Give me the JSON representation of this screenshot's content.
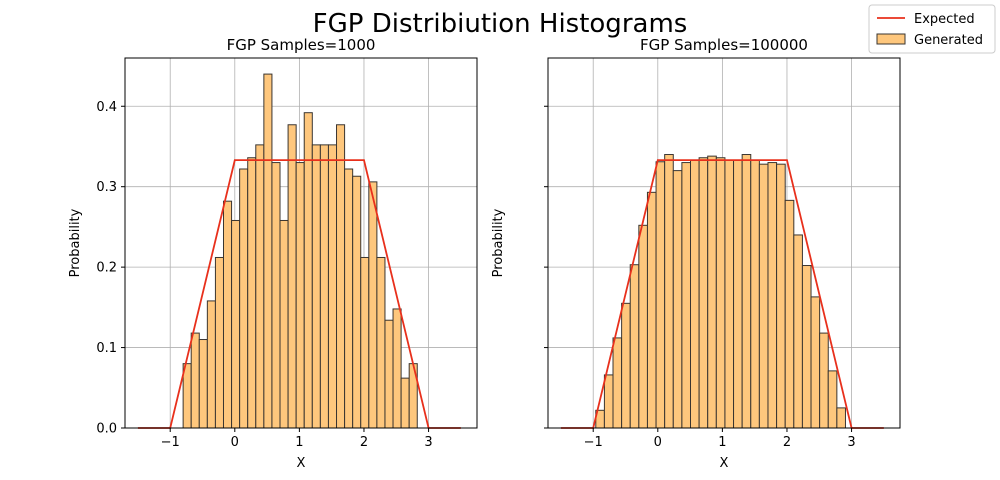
{
  "figure": {
    "title": "FGP Distribiution Histograms"
  },
  "legend": {
    "placement": "top-right",
    "items": [
      {
        "label": "Expected",
        "kind": "line",
        "color": "#e8301c"
      },
      {
        "label": "Generated",
        "kind": "bar",
        "color": "#fec77d"
      }
    ]
  },
  "colors": {
    "bar_fill": "#fec77d",
    "bar_edge": "#3a3530",
    "expected_line": "#e8301c",
    "grid": "#b0b0b0"
  },
  "chart_data": [
    {
      "type": "bar",
      "title": "FGP Samples=1000",
      "xlabel": "X",
      "ylabel": "Probability",
      "xlim": [
        -1.7,
        3.75
      ],
      "ylim": [
        0,
        0.46
      ],
      "xticks": [
        -1,
        0,
        1,
        2,
        3
      ],
      "yticks": [
        0.0,
        0.1,
        0.2,
        0.3,
        0.4
      ],
      "ytick_labels": [
        "0.0",
        "0.1",
        "0.2",
        "0.3",
        "0.4"
      ],
      "show_ytick_labels": true,
      "grid": true,
      "bin_edges_start": -0.8,
      "bin_width": 0.125,
      "values": [
        0.08,
        0.118,
        0.11,
        0.158,
        0.212,
        0.282,
        0.258,
        0.322,
        0.336,
        0.352,
        0.44,
        0.33,
        0.258,
        0.377,
        0.33,
        0.392,
        0.352,
        0.352,
        0.352,
        0.377,
        0.322,
        0.313,
        0.212,
        0.306,
        0.212,
        0.134,
        0.148,
        0.062,
        0.08
      ],
      "expected_series": {
        "name": "Expected",
        "x": [
          -1.5,
          -1.0,
          0.0,
          2.0,
          3.0,
          3.5
        ],
        "y": [
          0,
          0,
          0.333,
          0.333,
          0,
          0
        ]
      }
    },
    {
      "type": "bar",
      "title": "FGP Samples=100000",
      "xlabel": "X",
      "ylabel": "Probability",
      "xlim": [
        -1.7,
        3.75
      ],
      "ylim": [
        0,
        0.46
      ],
      "xticks": [
        -1,
        0,
        1,
        2,
        3
      ],
      "yticks": [
        0.0,
        0.1,
        0.2,
        0.3,
        0.4
      ],
      "ytick_labels": [
        "",
        "",
        "",
        "",
        ""
      ],
      "show_ytick_labels": false,
      "grid": true,
      "bin_edges_start": -0.96,
      "bin_width": 0.1333,
      "values": [
        0.022,
        0.066,
        0.112,
        0.155,
        0.203,
        0.252,
        0.293,
        0.331,
        0.34,
        0.32,
        0.33,
        0.333,
        0.336,
        0.338,
        0.336,
        0.333,
        0.333,
        0.34,
        0.333,
        0.328,
        0.33,
        0.328,
        0.283,
        0.24,
        0.202,
        0.163,
        0.118,
        0.071,
        0.025
      ],
      "expected_series": {
        "name": "Expected",
        "x": [
          -1.5,
          -1.0,
          0.0,
          2.0,
          3.0,
          3.5
        ],
        "y": [
          0,
          0,
          0.333,
          0.333,
          0,
          0
        ]
      }
    }
  ]
}
